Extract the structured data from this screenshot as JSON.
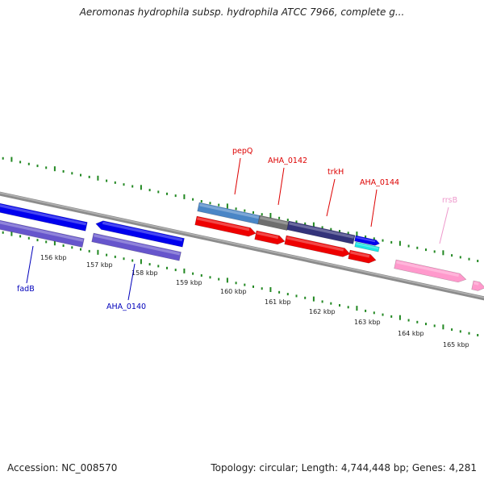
{
  "title": "Aeromonas hydrophila subsp. hydrophila ATCC 7966, complete g...",
  "footer": {
    "accession": "Accession: NC_008570",
    "summary": "Topology: circular; Length: 4,744,448 bp; Genes: 4,281"
  },
  "colors": {
    "forward_cds": "#ee0000",
    "forward_cds_steelblue": "#4a86c6",
    "forward_cds_gray": "#6e6e6e",
    "forward_cds_navy": "#33337a",
    "reverse_cds": "#0000ee",
    "gene": "#6655cc",
    "cyan": "#19e6e6",
    "rrna": "#ff99cc",
    "tick": "#228822",
    "backbone": "#8c8c8c",
    "label_red": "#dd0000",
    "label_blue": "#0000bb",
    "label_pink": "#ee99cc"
  },
  "scale_ticks": [
    "156 kbp",
    "157 kbp",
    "158 kbp",
    "159 kbp",
    "160 kbp",
    "161 kbp",
    "162 kbp",
    "163 kbp",
    "164 kbp",
    "165 kbp"
  ],
  "gene_labels": [
    {
      "name": "pepQ",
      "color": "label_red"
    },
    {
      "name": "AHA_0142",
      "color": "label_red"
    },
    {
      "name": "trkH",
      "color": "label_red"
    },
    {
      "name": "AHA_0144",
      "color": "label_red"
    },
    {
      "name": "rrsB",
      "color": "label_pink"
    },
    {
      "name": "fadB",
      "color": "label_blue"
    },
    {
      "name": "AHA_0140",
      "color": "label_blue"
    }
  ]
}
